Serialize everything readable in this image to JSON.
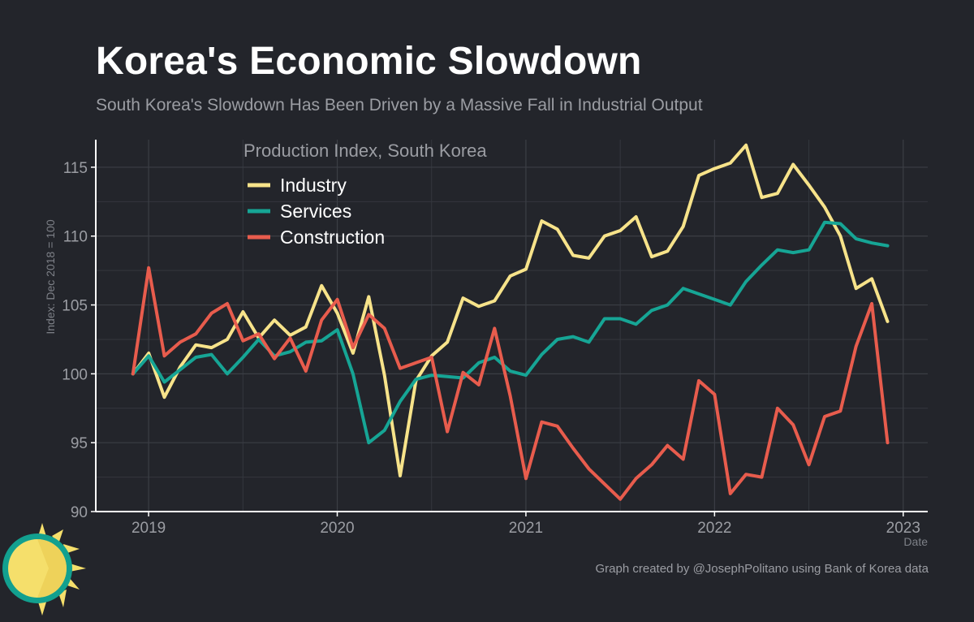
{
  "title": "Korea's Economic Slowdown",
  "subtitle": "South Korea's Slowdown Has Been Driven by a Massive Fall in Industrial Output",
  "credit": "Graph created by @JosephPolitano using Bank of Korea data",
  "chart_data": {
    "type": "line",
    "legend_title": "Production Index, South Korea",
    "legend_position": "top-left",
    "ylabel": "Index: Dec 2018 = 100",
    "xlabel": "Date",
    "ylim": [
      90,
      117
    ],
    "xlim": [
      2018.72,
      2023.13
    ],
    "yticks": [
      90,
      95,
      100,
      105,
      110,
      115
    ],
    "xticks": [
      2019,
      2020,
      2021,
      2022,
      2023
    ],
    "grid": true,
    "x_start": 2018.917,
    "x_step": 0.08333,
    "series": [
      {
        "name": "Industry",
        "color": "#f7e38a",
        "values": [
          100.0,
          101.5,
          98.3,
          100.5,
          102.1,
          101.9,
          102.5,
          104.5,
          102.6,
          103.9,
          102.8,
          103.4,
          106.4,
          104.4,
          101.5,
          105.6,
          99.9,
          92.6,
          99.5,
          101.3,
          102.3,
          105.5,
          104.9,
          105.3,
          107.1,
          107.6,
          111.1,
          110.5,
          108.6,
          108.4,
          110.0,
          110.4,
          111.4,
          108.5,
          108.9,
          110.7,
          114.4,
          114.9,
          115.3,
          116.6,
          112.8,
          113.1,
          115.2,
          113.7,
          112.1,
          110.0,
          106.2,
          106.9,
          103.8
        ]
      },
      {
        "name": "Services",
        "color": "#16a595",
        "values": [
          100.0,
          101.3,
          99.4,
          100.3,
          101.2,
          101.4,
          100.0,
          101.2,
          102.5,
          101.3,
          101.6,
          102.3,
          102.4,
          103.2,
          100.0,
          95.0,
          95.9,
          98.0,
          99.6,
          99.9,
          99.8,
          99.7,
          100.8,
          101.2,
          100.2,
          99.9,
          101.4,
          102.5,
          102.7,
          102.3,
          104.0,
          104.0,
          103.6,
          104.6,
          105.0,
          106.2,
          105.8,
          105.4,
          105.0,
          106.7,
          107.9,
          109.0,
          108.8,
          109.0,
          111.0,
          110.9,
          109.8,
          109.5,
          109.3
        ]
      },
      {
        "name": "Construction",
        "color": "#e85c4d",
        "values": [
          100.0,
          107.7,
          101.3,
          102.3,
          102.9,
          104.4,
          105.1,
          102.4,
          102.9,
          101.1,
          102.6,
          100.2,
          103.9,
          105.4,
          101.9,
          104.3,
          103.3,
          100.4,
          100.8,
          101.2,
          95.8,
          100.1,
          99.2,
          103.3,
          98.4,
          92.4,
          96.5,
          96.2,
          94.6,
          93.1,
          92.0,
          90.9,
          92.4,
          93.4,
          94.8,
          93.8,
          99.5,
          98.5,
          91.3,
          92.7,
          92.5,
          97.5,
          96.3,
          93.4,
          96.9,
          97.3,
          102.0,
          105.1,
          95.0
        ]
      }
    ]
  }
}
